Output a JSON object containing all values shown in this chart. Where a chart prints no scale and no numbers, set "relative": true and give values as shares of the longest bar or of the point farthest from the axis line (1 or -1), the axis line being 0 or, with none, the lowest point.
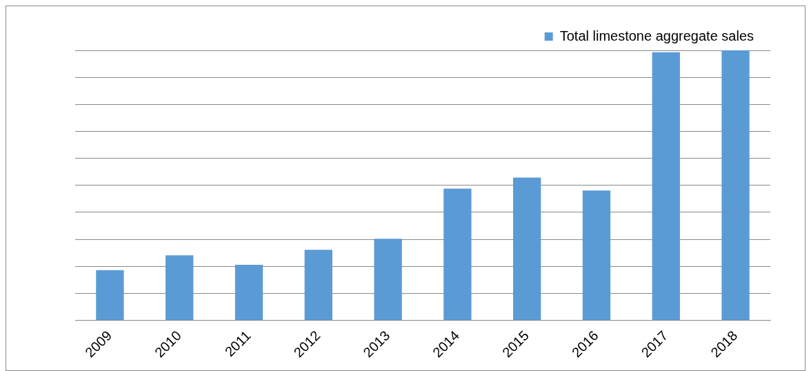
{
  "chart_data": {
    "type": "bar",
    "relative": true,
    "categories": [
      "2009",
      "2010",
      "2011",
      "2012",
      "2013",
      "2014",
      "2015",
      "2016",
      "2017",
      "2018"
    ],
    "series": [
      {
        "name": "Total limestone aggregate sales",
        "color": "#5b9bd5",
        "values": [
          0.186,
          0.241,
          0.206,
          0.261,
          0.302,
          0.488,
          0.529,
          0.481,
          0.993,
          1
        ]
      }
    ],
    "grid": "y",
    "legend": "top right"
  }
}
